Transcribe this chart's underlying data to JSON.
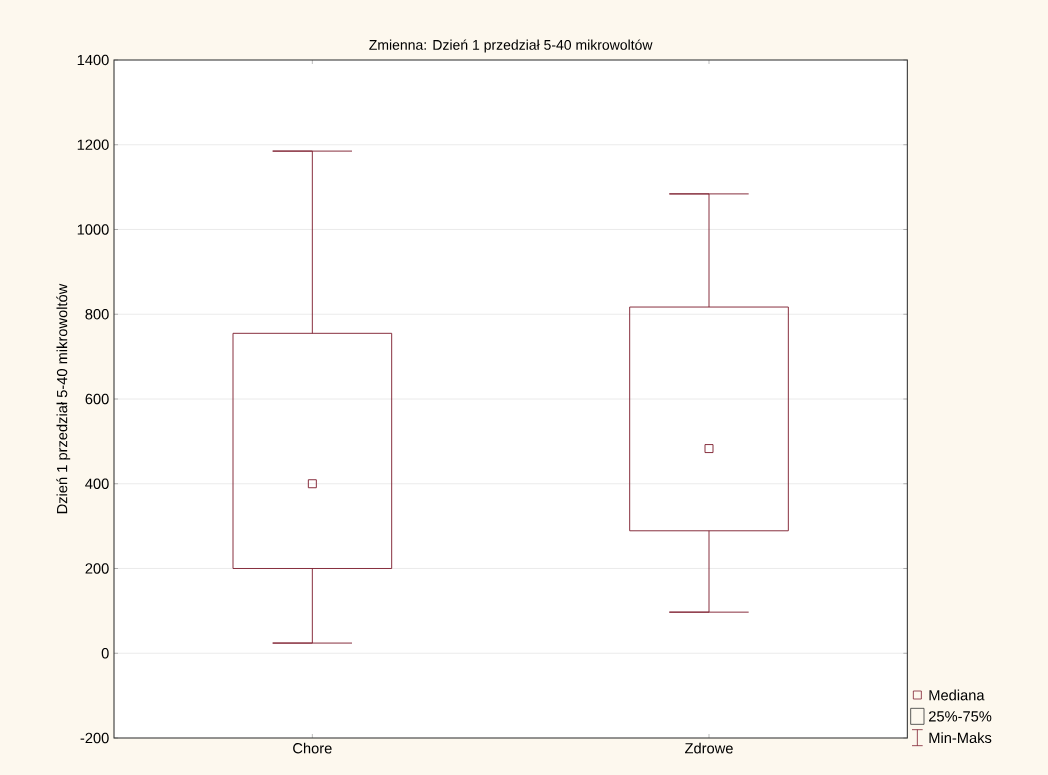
{
  "chart_data": {
    "type": "box",
    "title": "Zmienna:  Dzień 1 przedział 5-40 mikrowoltów",
    "ylabel": "Dzień 1 przedział 5-40 mikrowoltów",
    "categories": [
      "Chore",
      "Zdrowe"
    ],
    "boxes": [
      {
        "low": 24,
        "q1": 200,
        "median": 400,
        "q3": 755,
        "high": 1185
      },
      {
        "low": 97,
        "q1": 289,
        "median": 483,
        "q3": 817,
        "high": 1084
      }
    ],
    "color": "#7f2030",
    "ylim": [
      -200,
      1400
    ],
    "yticks": [
      -200,
      0,
      200,
      400,
      600,
      800,
      1000,
      1200,
      1400
    ],
    "grid": "y",
    "marker": "square",
    "annotations": [
      "Mediana",
      "25%-75%",
      "Min-Maks"
    ]
  }
}
